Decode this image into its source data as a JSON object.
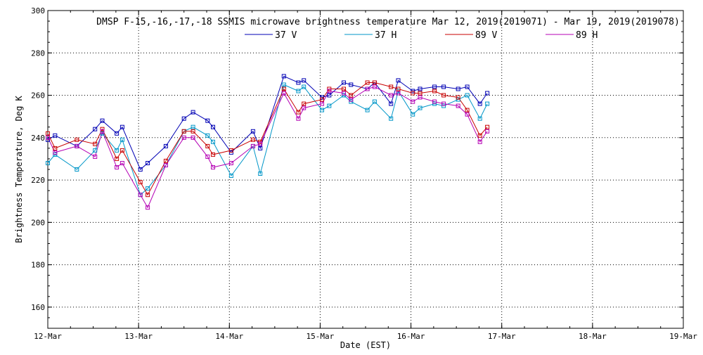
{
  "chart_data": {
    "type": "line",
    "title": "DMSP F-15,-16,-17,-18 SSMIS microwave brightness temperature Mar 12, 2019(2019071) - Mar 19, 2019(2019078)",
    "xlabel": "Date (EST)",
    "ylabel": "Brightness Temperature, Deg K",
    "xlim": [
      0,
      7
    ],
    "ylim": [
      150,
      300
    ],
    "yticks": [
      160,
      180,
      200,
      220,
      240,
      260,
      280,
      300
    ],
    "categories": [
      "12-Mar",
      "13-Mar",
      "14-Mar",
      "15-Mar",
      "16-Mar",
      "17-Mar",
      "18-Mar",
      "19-Mar"
    ],
    "grid": true,
    "legend_position": "top",
    "series": [
      {
        "name": "37 V",
        "color": "#0000b4",
        "x": [
          0.0,
          0.08,
          0.32,
          0.52,
          0.6,
          0.76,
          0.82,
          1.02,
          1.1,
          1.3,
          1.5,
          1.6,
          1.76,
          1.82,
          2.02,
          2.26,
          2.34,
          2.6,
          2.76,
          2.82,
          3.02,
          3.1,
          3.26,
          3.34,
          3.52,
          3.6,
          3.78,
          3.86,
          4.02,
          4.1,
          4.26,
          4.36,
          4.52,
          4.62,
          4.76,
          4.84
        ],
        "values": [
          239,
          241,
          236,
          244,
          248,
          242,
          245,
          225,
          228,
          236,
          249,
          252,
          248,
          245,
          233,
          243,
          235,
          269,
          266,
          267,
          259,
          260,
          266,
          265,
          263,
          266,
          256,
          267,
          262,
          263,
          264,
          264,
          263,
          264,
          256,
          261
        ]
      },
      {
        "name": "37 H",
        "color": "#0096c8",
        "x": [
          0.0,
          0.08,
          0.32,
          0.52,
          0.6,
          0.76,
          0.82,
          1.02,
          1.1,
          1.3,
          1.5,
          1.6,
          1.76,
          1.82,
          2.02,
          2.26,
          2.34,
          2.6,
          2.76,
          2.82,
          3.02,
          3.1,
          3.26,
          3.34,
          3.52,
          3.6,
          3.78,
          3.86,
          4.02,
          4.1,
          4.26,
          4.36,
          4.52,
          4.62,
          4.76,
          4.84
        ],
        "values": [
          228,
          232,
          225,
          234,
          242,
          234,
          239,
          213,
          216,
          227,
          243,
          245,
          241,
          238,
          222,
          236,
          223,
          265,
          262,
          264,
          253,
          255,
          260,
          257,
          253,
          257,
          249,
          262,
          251,
          254,
          256,
          255,
          258,
          260,
          249,
          256
        ]
      },
      {
        "name": "89 V",
        "color": "#c80000",
        "x": [
          0.0,
          0.08,
          0.32,
          0.52,
          0.6,
          0.76,
          0.82,
          1.02,
          1.1,
          1.3,
          1.5,
          1.6,
          1.76,
          1.82,
          2.02,
          2.26,
          2.34,
          2.6,
          2.76,
          2.82,
          3.02,
          3.1,
          3.26,
          3.34,
          3.52,
          3.6,
          3.78,
          3.86,
          4.02,
          4.1,
          4.26,
          4.36,
          4.52,
          4.62,
          4.76,
          4.84
        ],
        "values": [
          242,
          235,
          239,
          237,
          244,
          230,
          234,
          219,
          213,
          229,
          243,
          243,
          236,
          232,
          234,
          239,
          238,
          263,
          252,
          256,
          258,
          263,
          263,
          260,
          266,
          266,
          264,
          263,
          261,
          261,
          262,
          260,
          259,
          253,
          241,
          245
        ]
      },
      {
        "name": "89 H",
        "color": "#b400b4",
        "x": [
          0.0,
          0.08,
          0.32,
          0.52,
          0.6,
          0.76,
          0.82,
          1.02,
          1.1,
          1.3,
          1.5,
          1.6,
          1.76,
          1.82,
          2.02,
          2.26,
          2.34,
          2.6,
          2.76,
          2.82,
          3.02,
          3.1,
          3.26,
          3.34,
          3.52,
          3.6,
          3.78,
          3.86,
          4.02,
          4.1,
          4.26,
          4.36,
          4.52,
          4.62,
          4.76,
          4.84
        ],
        "values": [
          240,
          233,
          236,
          231,
          243,
          226,
          228,
          213,
          207,
          227,
          240,
          240,
          231,
          226,
          228,
          236,
          237,
          261,
          249,
          254,
          256,
          262,
          261,
          258,
          263,
          264,
          260,
          261,
          257,
          259,
          257,
          256,
          255,
          251,
          238,
          243
        ]
      }
    ]
  }
}
